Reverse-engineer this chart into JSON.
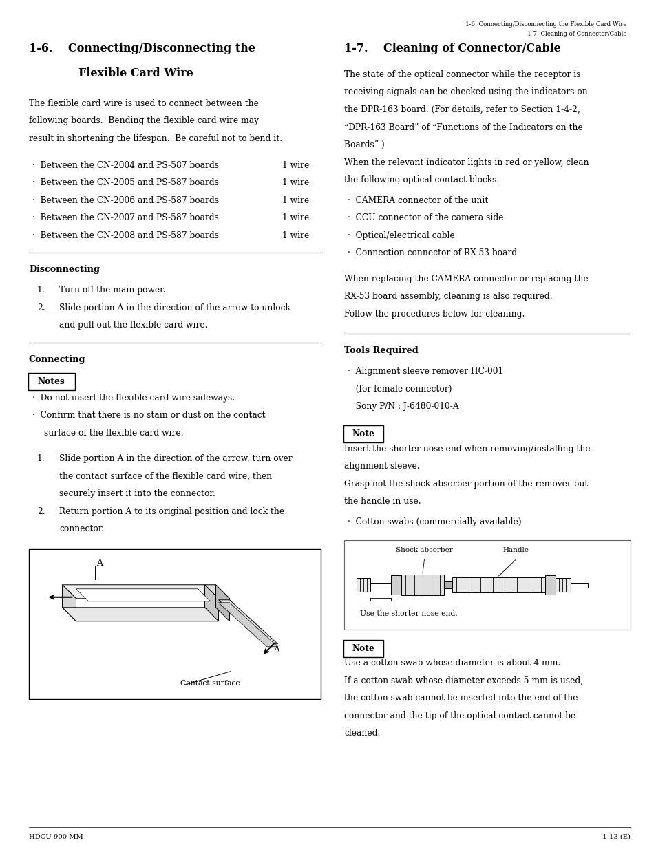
{
  "page_width": 9.54,
  "page_height": 12.44,
  "bg_color": "#ffffff",
  "header_right_line1": "1-6. Connecting/Disconnecting the Flexible Card Wire",
  "header_right_line2": "1-7. Cleaning of Connector/Cable",
  "footer_left": "HDCU-900 MM",
  "footer_right": "1-13 (E)",
  "font": "serif",
  "bullet": "·",
  "left_col": {
    "title_line1": "1-6.    Connecting/Disconnecting the",
    "title_line2": "Flexible Card Wire",
    "intro_lines": [
      "The flexible card wire is used to connect between the",
      "following boards.  Bending the flexible card wire may",
      "result in shortening the lifespan.  Be careful not to bend it."
    ],
    "bullets": [
      {
        "text": "Between the CN-2004 and PS-587 boards",
        "right": "1 wire"
      },
      {
        "text": "Between the CN-2005 and PS-587 boards",
        "right": "1 wire"
      },
      {
        "text": "Between the CN-2006 and PS-587 boards",
        "right": "1 wire"
      },
      {
        "text": "Between the CN-2007 and PS-587 boards",
        "right": "1 wire"
      },
      {
        "text": "Between the CN-2008 and PS-587 boards",
        "right": "1 wire"
      }
    ],
    "disconnecting_title": "Disconnecting",
    "disconnecting_steps": [
      [
        "Turn off the main power."
      ],
      [
        "Slide portion A in the direction of the arrow to unlock",
        "and pull out the flexible card wire."
      ]
    ],
    "connecting_title": "Connecting",
    "notes_label": "Notes",
    "notes_bullets": [
      [
        "Do not insert the flexible card wire sideways."
      ],
      [
        "Confirm that there is no stain or dust on the contact",
        "surface of the flexible card wire."
      ]
    ],
    "connecting_steps": [
      [
        "Slide portion A in the direction of the arrow, turn over",
        "the contact surface of the flexible card wire, then",
        "securely insert it into the connector."
      ],
      [
        "Return portion A to its original position and lock the",
        "connector."
      ]
    ],
    "diagram_label": "Contact surface"
  },
  "right_col": {
    "title": "1-7.    Cleaning of Connector/Cable",
    "intro_lines": [
      "The state of the optical connector while the receptor is",
      "receiving signals can be checked using the indicators on",
      "the DPR-163 board. (For details, refer to Section 1-4-2,",
      "“DPR-163 Board” of “Functions of the Indicators on the",
      "Boards” )",
      "When the relevant indicator lights in red or yellow, clean",
      "the following optical contact blocks."
    ],
    "clean_bullets": [
      "CAMERA connector of the unit",
      "CCU connector of the camera side",
      "Optical/electrical cable",
      "Connection connector of RX-53 board"
    ],
    "replace_lines": [
      "When replacing the CAMERA connector or replacing the",
      "RX-53 board assembly, cleaning is also required.",
      "Follow the procedures below for cleaning."
    ],
    "tools_title": "Tools Required",
    "tools_bullet_lines": [
      "·  Alignment sleeve remover HC-001",
      "   (for female connector)",
      "   Sony P/N : J-6480-010-A"
    ],
    "note_label": "Note",
    "note_lines": [
      "Insert the shorter nose end when removing/installing the",
      "alignment sleeve.",
      "Grasp not the shock absorber portion of the remover but",
      "the handle in use."
    ],
    "cotton_bullet": "Cotton swabs (commercially available)",
    "diagram_shock_label": "Shock absorber",
    "diagram_handle_label": "Handle",
    "diagram_bottom": "Use the shorter nose end.",
    "note2_label": "Note",
    "note2_lines": [
      "Use a cotton swab whose diameter is about 4 mm.",
      "If a cotton swab whose diameter exceeds 5 mm is used,",
      "the cotton swab cannot be inserted into the end of the",
      "connector and the tip of the optical contact cannot be",
      "cleaned."
    ]
  }
}
